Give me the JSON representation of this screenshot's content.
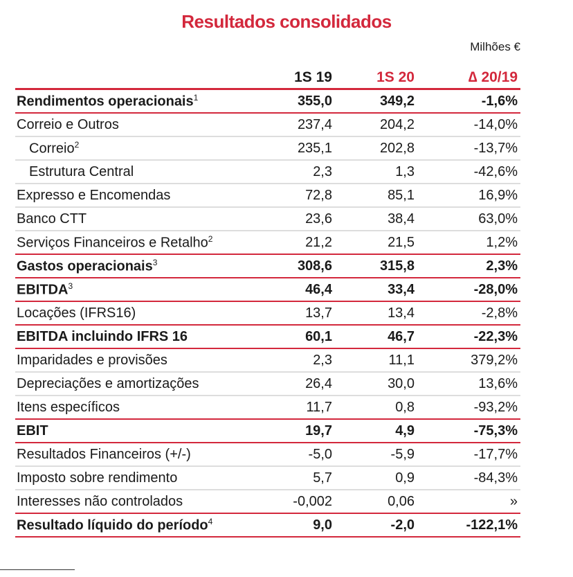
{
  "title": "Resultados consolidados",
  "unit": "Milhões €",
  "columns": [
    "1S 19",
    "1S 20",
    "∆ 20/19"
  ],
  "rows": [
    {
      "label": "Rendimentos operacionais",
      "sup": "1",
      "v": [
        "355,0",
        "349,2",
        "-1,6%"
      ],
      "bold": true
    },
    {
      "label": "Correio e Outros",
      "v": [
        "237,4",
        "204,2",
        "-14,0%"
      ]
    },
    {
      "label": "Correio",
      "sup": "2",
      "v": [
        "235,1",
        "202,8",
        "-13,7%"
      ],
      "indent": true
    },
    {
      "label": "Estrutura Central",
      "v": [
        "2,3",
        "1,3",
        "-42,6%"
      ],
      "indent": true
    },
    {
      "label": "Expresso e Encomendas",
      "v": [
        "72,8",
        "85,1",
        "16,9%"
      ]
    },
    {
      "label": "Banco CTT",
      "v": [
        "23,6",
        "38,4",
        "63,0%"
      ]
    },
    {
      "label": "Serviços Financeiros e Retalho",
      "sup": "2",
      "v": [
        "21,2",
        "21,5",
        "1,2%"
      ]
    },
    {
      "label": "Gastos operacionais",
      "sup": "3",
      "v": [
        "308,6",
        "315,8",
        "2,3%"
      ],
      "bold": true
    },
    {
      "label": "EBITDA",
      "sup": "3",
      "v": [
        "46,4",
        "33,4",
        "-28,0%"
      ],
      "bold": true
    },
    {
      "label": "Locações (IFRS16)",
      "v": [
        "13,7",
        "13,4",
        "-2,8%"
      ]
    },
    {
      "label": "EBITDA incluindo IFRS 16",
      "v": [
        "60,1",
        "46,7",
        "-22,3%"
      ],
      "bold": true
    },
    {
      "label": "Imparidades e provisões",
      "v": [
        "2,3",
        "11,1",
        "379,2%"
      ]
    },
    {
      "label": "Depreciações e amortizações",
      "v": [
        "26,4",
        "30,0",
        "13,6%"
      ]
    },
    {
      "label": "Itens específicos",
      "v": [
        "11,7",
        "0,8",
        "-93,2%"
      ]
    },
    {
      "label": "EBIT",
      "v": [
        "19,7",
        "4,9",
        "-75,3%"
      ],
      "bold": true
    },
    {
      "label": "Resultados Financeiros (+/-)",
      "v": [
        "-5,0",
        "-5,9",
        "-17,7%"
      ]
    },
    {
      "label": "Imposto sobre rendimento",
      "v": [
        "5,7",
        "0,9",
        "-84,3%"
      ]
    },
    {
      "label": "Interesses não controlados",
      "v": [
        "-0,002",
        "0,06",
        "»"
      ]
    },
    {
      "label": "Resultado líquido do período",
      "sup": "4",
      "v": [
        "9,0",
        "-2,0",
        "-122,1%"
      ],
      "bold": true
    }
  ]
}
